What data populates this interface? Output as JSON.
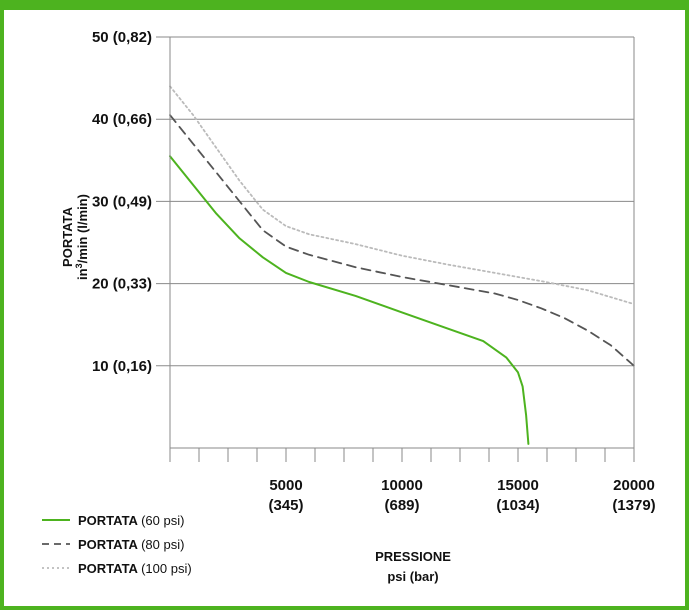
{
  "chart_data": {
    "type": "line",
    "title": "",
    "ylabel": {
      "line1": "PORTATA",
      "line2_pre": "in",
      "line2_sup": "3",
      "line2_post": "/min (l/min)"
    },
    "xlabel": {
      "line1": "PRESSIONE",
      "line2": "psi (bar)"
    },
    "xlim": [
      0,
      20000
    ],
    "ylim": [
      0,
      50
    ],
    "x_minor_step": 1250,
    "grid": "horizontal",
    "legend_position": "bottom-left",
    "y_ticks": [
      {
        "value": 10,
        "label": "10 (0,16)"
      },
      {
        "value": 20,
        "label": "20 (0,33)"
      },
      {
        "value": 30,
        "label": "30 (0,49)"
      },
      {
        "value": 40,
        "label": "40 (0,66)"
      },
      {
        "value": 50,
        "label": "50 (0,82)"
      }
    ],
    "x_ticks": [
      {
        "value": 5000,
        "label1": "5000",
        "label2": "(345)"
      },
      {
        "value": 10000,
        "label1": "10000",
        "label2": "(689)"
      },
      {
        "value": 15000,
        "label1": "15000",
        "label2": "(1034)"
      },
      {
        "value": 20000,
        "label1": "20000",
        "label2": "(1379)"
      }
    ],
    "series": [
      {
        "name": "PORTATA",
        "unit": "(60 psi)",
        "color": "#4db31f",
        "style": "solid",
        "points": [
          [
            0,
            35.5
          ],
          [
            1000,
            32
          ],
          [
            2000,
            28.5
          ],
          [
            3000,
            25.5
          ],
          [
            4000,
            23.2
          ],
          [
            5000,
            21.3
          ],
          [
            6000,
            20.2
          ],
          [
            8000,
            18.5
          ],
          [
            10000,
            16.5
          ],
          [
            12000,
            14.5
          ],
          [
            13500,
            13
          ],
          [
            14500,
            11
          ],
          [
            15000,
            9.2
          ],
          [
            15200,
            7.5
          ],
          [
            15350,
            4
          ],
          [
            15450,
            0.5
          ]
        ]
      },
      {
        "name": "PORTATA",
        "unit": "(80 psi)",
        "color": "#555555",
        "style": "dashed",
        "points": [
          [
            0,
            40.5
          ],
          [
            1000,
            37
          ],
          [
            2000,
            33.5
          ],
          [
            3000,
            30
          ],
          [
            4000,
            26.5
          ],
          [
            5000,
            24.5
          ],
          [
            6000,
            23.5
          ],
          [
            8000,
            22
          ],
          [
            10000,
            20.8
          ],
          [
            12000,
            19.8
          ],
          [
            14000,
            18.8
          ],
          [
            15000,
            18
          ],
          [
            16000,
            17
          ],
          [
            17000,
            15.8
          ],
          [
            18000,
            14.3
          ],
          [
            19000,
            12.5
          ],
          [
            20000,
            10
          ]
        ]
      },
      {
        "name": "PORTATA",
        "unit": "(100 psi)",
        "color": "#bbbbbb",
        "style": "dotted",
        "points": [
          [
            0,
            44
          ],
          [
            1000,
            40.5
          ],
          [
            2000,
            36.5
          ],
          [
            3000,
            32.5
          ],
          [
            4000,
            29
          ],
          [
            5000,
            27
          ],
          [
            6000,
            26
          ],
          [
            8000,
            24.8
          ],
          [
            10000,
            23.4
          ],
          [
            12000,
            22.3
          ],
          [
            14000,
            21.3
          ],
          [
            16000,
            20.3
          ],
          [
            18000,
            19.2
          ],
          [
            20000,
            17.5
          ]
        ]
      }
    ]
  }
}
